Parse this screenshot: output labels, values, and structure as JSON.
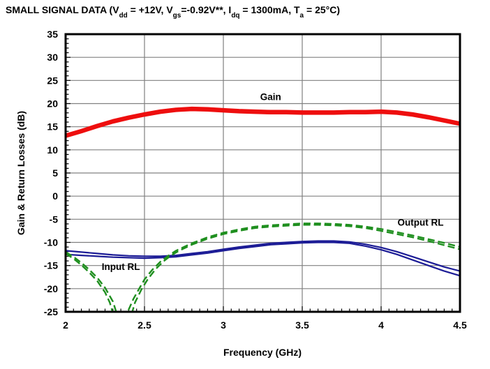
{
  "title": {
    "p1": "SMALL SIGNAL DATA (V",
    "s1": "dd",
    "p2": " = +12V, V",
    "s2": "gs",
    "p3": "=-0.92V**, I",
    "s3": "dq",
    "p4": " = 1300mA, T",
    "s4": "a",
    "p5": " = 25°C)"
  },
  "chart_data": {
    "type": "line",
    "title": "SMALL SIGNAL DATA (Vdd = +12V, Vgs=-0.92V**, Idq = 1300mA, Ta = 25°C)",
    "xlabel": "Frequency (GHz)",
    "ylabel": "Gain & Return Losses (dB)",
    "xlim": [
      2,
      4.5
    ],
    "ylim": [
      -25,
      35
    ],
    "x_ticks": [
      2,
      2.5,
      3,
      3.5,
      4,
      4.5
    ],
    "y_ticks": [
      35,
      30,
      25,
      20,
      15,
      10,
      5,
      0,
      -5,
      -10,
      -15,
      -20,
      -25
    ],
    "x_minor_step": 0.05,
    "y_minor_step": 1,
    "grid": true,
    "grid_color": "#808080",
    "frame_color": "#000000",
    "legend_position": "inline-labels",
    "annotations": [
      {
        "text": "Gain",
        "x": 3.3,
        "y": 21.5
      },
      {
        "text": "Input RL",
        "x": 2.35,
        "y": -15.2
      },
      {
        "text": "Output RL",
        "x": 4.25,
        "y": -5.6
      }
    ],
    "series": [
      {
        "name": "Gain",
        "color": "#ee0e0e",
        "dash": null,
        "width": 4.5,
        "traces": [
          [
            [
              2.0,
              13.2
            ],
            [
              2.1,
              14.2
            ],
            [
              2.2,
              15.3
            ],
            [
              2.3,
              16.3
            ],
            [
              2.4,
              17.1
            ],
            [
              2.5,
              17.8
            ],
            [
              2.6,
              18.4
            ],
            [
              2.7,
              18.8
            ],
            [
              2.8,
              19.0
            ],
            [
              2.9,
              18.9
            ],
            [
              3.0,
              18.7
            ],
            [
              3.1,
              18.5
            ],
            [
              3.2,
              18.4
            ],
            [
              3.3,
              18.3
            ],
            [
              3.4,
              18.3
            ],
            [
              3.5,
              18.2
            ],
            [
              3.6,
              18.2
            ],
            [
              3.7,
              18.2
            ],
            [
              3.8,
              18.3
            ],
            [
              3.9,
              18.3
            ],
            [
              4.0,
              18.4
            ],
            [
              4.1,
              18.2
            ],
            [
              4.2,
              17.8
            ],
            [
              4.3,
              17.2
            ],
            [
              4.4,
              16.5
            ],
            [
              4.5,
              15.8
            ]
          ],
          [
            [
              2.0,
              12.9
            ],
            [
              2.1,
              13.9
            ],
            [
              2.2,
              15.0
            ],
            [
              2.3,
              16.0
            ],
            [
              2.4,
              16.8
            ],
            [
              2.5,
              17.5
            ],
            [
              2.6,
              18.1
            ],
            [
              2.7,
              18.5
            ],
            [
              2.8,
              18.7
            ],
            [
              2.9,
              18.6
            ],
            [
              3.0,
              18.4
            ],
            [
              3.1,
              18.2
            ],
            [
              3.2,
              18.1
            ],
            [
              3.3,
              18.0
            ],
            [
              3.4,
              18.0
            ],
            [
              3.5,
              17.9
            ],
            [
              3.6,
              17.9
            ],
            [
              3.7,
              17.9
            ],
            [
              3.8,
              18.0
            ],
            [
              3.9,
              18.0
            ],
            [
              4.0,
              18.1
            ],
            [
              4.1,
              17.9
            ],
            [
              4.2,
              17.5
            ],
            [
              4.3,
              16.9
            ],
            [
              4.4,
              16.2
            ],
            [
              4.5,
              15.5
            ]
          ]
        ]
      },
      {
        "name": "Input RL",
        "color": "#1c1c96",
        "dash": null,
        "width": 2.2,
        "traces": [
          [
            [
              2.0,
              -11.8
            ],
            [
              2.1,
              -12.1
            ],
            [
              2.2,
              -12.4
            ],
            [
              2.3,
              -12.7
            ],
            [
              2.4,
              -12.9
            ],
            [
              2.5,
              -13.0
            ],
            [
              2.6,
              -13.0
            ],
            [
              2.7,
              -12.8
            ],
            [
              2.8,
              -12.4
            ],
            [
              2.9,
              -12.0
            ],
            [
              3.0,
              -11.5
            ],
            [
              3.1,
              -11.0
            ],
            [
              3.2,
              -10.6
            ],
            [
              3.3,
              -10.2
            ],
            [
              3.4,
              -10.0
            ],
            [
              3.5,
              -9.8
            ],
            [
              3.6,
              -9.7
            ],
            [
              3.7,
              -9.7
            ],
            [
              3.8,
              -9.9
            ],
            [
              3.9,
              -10.4
            ],
            [
              4.0,
              -11.1
            ],
            [
              4.1,
              -12.0
            ],
            [
              4.2,
              -13.1
            ],
            [
              4.3,
              -14.2
            ],
            [
              4.4,
              -15.3
            ],
            [
              4.5,
              -16.2
            ]
          ],
          [
            [
              2.0,
              -12.6
            ],
            [
              2.1,
              -12.8
            ],
            [
              2.2,
              -13.0
            ],
            [
              2.3,
              -13.2
            ],
            [
              2.4,
              -13.3
            ],
            [
              2.5,
              -13.4
            ],
            [
              2.6,
              -13.3
            ],
            [
              2.7,
              -13.1
            ],
            [
              2.8,
              -12.7
            ],
            [
              2.9,
              -12.3
            ],
            [
              3.0,
              -11.8
            ],
            [
              3.1,
              -11.3
            ],
            [
              3.2,
              -10.9
            ],
            [
              3.3,
              -10.5
            ],
            [
              3.4,
              -10.3
            ],
            [
              3.5,
              -10.1
            ],
            [
              3.6,
              -10.0
            ],
            [
              3.7,
              -10.0
            ],
            [
              3.8,
              -10.2
            ],
            [
              3.9,
              -10.8
            ],
            [
              4.0,
              -11.6
            ],
            [
              4.1,
              -12.6
            ],
            [
              4.2,
              -13.8
            ],
            [
              4.3,
              -15.0
            ],
            [
              4.4,
              -16.2
            ],
            [
              4.5,
              -17.2
            ]
          ]
        ]
      },
      {
        "name": "Output RL",
        "color": "#1f8f1f",
        "dash": [
          10,
          5
        ],
        "width": 2.4,
        "traces": [
          [
            [
              2.0,
              -12.1
            ],
            [
              2.05,
              -13.1
            ],
            [
              2.1,
              -14.4
            ],
            [
              2.15,
              -15.9
            ],
            [
              2.2,
              -17.6
            ],
            [
              2.25,
              -19.8
            ],
            [
              2.3,
              -22.8
            ],
            [
              2.33,
              -26.0
            ],
            [
              2.37,
              -27.0
            ],
            [
              2.4,
              -24.5
            ],
            [
              2.43,
              -22.2
            ],
            [
              2.47,
              -19.8
            ],
            [
              2.5,
              -18.0
            ],
            [
              2.55,
              -15.9
            ],
            [
              2.6,
              -14.2
            ],
            [
              2.65,
              -12.9
            ],
            [
              2.7,
              -11.8
            ],
            [
              2.8,
              -10.2
            ],
            [
              2.9,
              -8.9
            ],
            [
              3.0,
              -7.9
            ],
            [
              3.1,
              -7.2
            ],
            [
              3.2,
              -6.6
            ],
            [
              3.3,
              -6.3
            ],
            [
              3.4,
              -6.1
            ],
            [
              3.5,
              -5.9
            ],
            [
              3.6,
              -5.9
            ],
            [
              3.7,
              -6.0
            ],
            [
              3.8,
              -6.2
            ],
            [
              3.9,
              -6.6
            ],
            [
              4.0,
              -7.1
            ],
            [
              4.1,
              -7.8
            ],
            [
              4.2,
              -8.5
            ],
            [
              4.3,
              -9.3
            ],
            [
              4.4,
              -10.1
            ],
            [
              4.5,
              -11.0
            ]
          ],
          [
            [
              2.0,
              -12.4
            ],
            [
              2.05,
              -13.5
            ],
            [
              2.1,
              -14.9
            ],
            [
              2.15,
              -16.5
            ],
            [
              2.2,
              -18.3
            ],
            [
              2.25,
              -20.8
            ],
            [
              2.28,
              -23.0
            ],
            [
              2.31,
              -26.5
            ],
            [
              2.41,
              -26.5
            ],
            [
              2.44,
              -23.0
            ],
            [
              2.48,
              -20.2
            ],
            [
              2.52,
              -18.0
            ],
            [
              2.57,
              -15.8
            ],
            [
              2.62,
              -14.1
            ],
            [
              2.67,
              -12.8
            ],
            [
              2.72,
              -11.8
            ],
            [
              2.8,
              -10.5
            ],
            [
              2.9,
              -9.2
            ],
            [
              3.0,
              -8.2
            ],
            [
              3.1,
              -7.5
            ],
            [
              3.2,
              -6.9
            ],
            [
              3.3,
              -6.6
            ],
            [
              3.4,
              -6.4
            ],
            [
              3.5,
              -6.2
            ],
            [
              3.6,
              -6.2
            ],
            [
              3.7,
              -6.3
            ],
            [
              3.8,
              -6.5
            ],
            [
              3.9,
              -6.9
            ],
            [
              4.0,
              -7.5
            ],
            [
              4.1,
              -8.2
            ],
            [
              4.2,
              -8.9
            ],
            [
              4.3,
              -9.7
            ],
            [
              4.4,
              -10.6
            ],
            [
              4.5,
              -11.5
            ]
          ]
        ]
      }
    ]
  }
}
